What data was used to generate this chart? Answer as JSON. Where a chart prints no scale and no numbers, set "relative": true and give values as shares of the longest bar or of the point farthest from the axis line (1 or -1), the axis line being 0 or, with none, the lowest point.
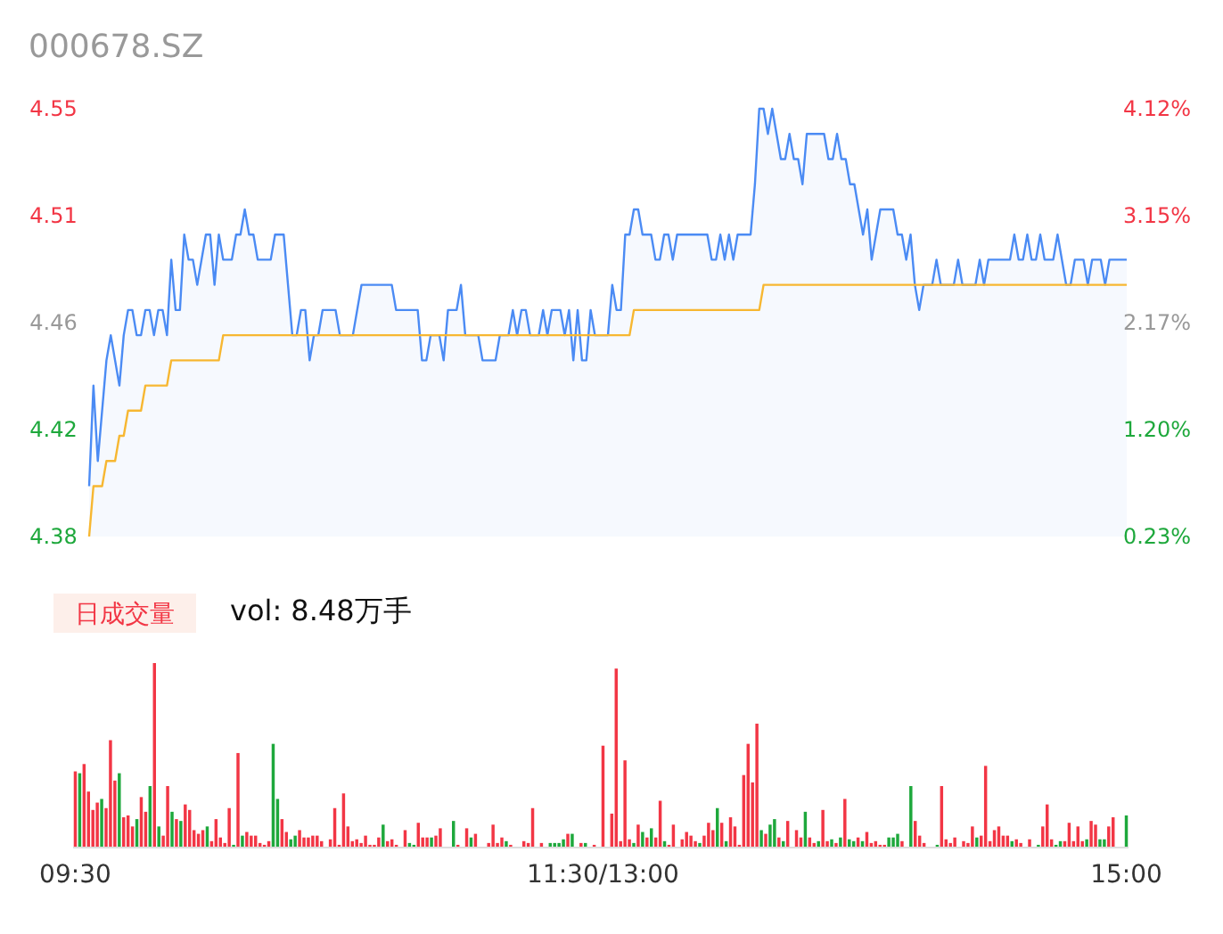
{
  "chart_data": [
    {
      "type": "area",
      "title": "000678.SZ",
      "ylim": [
        4.38,
        4.55
      ],
      "categories": [
        null,
        null,
        null,
        null,
        null,
        null,
        null,
        null,
        null,
        null,
        null,
        null,
        null,
        null,
        null,
        null,
        null,
        null,
        null,
        null,
        null,
        null,
        null,
        null,
        null,
        null,
        null,
        null,
        null,
        null,
        null,
        null,
        null,
        null,
        null,
        null,
        null,
        null,
        null,
        null,
        null,
        null,
        null,
        null,
        null,
        null,
        null,
        null,
        null,
        null,
        null,
        null,
        null,
        null,
        null,
        null,
        null,
        null,
        null,
        null,
        null,
        null,
        null,
        null,
        null,
        null,
        null,
        null,
        null,
        null,
        null,
        null,
        null,
        null,
        null,
        null,
        null,
        null,
        null,
        null,
        null,
        null,
        null,
        null,
        null,
        null,
        null,
        null,
        null,
        null,
        null,
        null,
        null,
        null,
        null,
        null,
        null,
        null,
        null,
        null,
        null,
        null,
        null,
        null,
        null,
        null,
        null,
        null,
        null,
        null,
        null,
        null,
        null,
        null,
        null,
        null,
        null,
        null,
        null,
        null,
        null,
        null,
        null,
        null,
        null,
        null,
        null,
        null,
        null,
        null,
        null,
        null,
        null,
        null,
        null,
        null,
        null,
        null,
        null,
        null,
        null,
        null,
        null,
        null,
        null,
        null,
        null,
        null,
        null,
        null,
        null,
        null,
        null,
        null,
        null,
        null,
        null,
        null,
        null,
        null,
        null,
        null,
        null,
        null,
        null,
        null,
        null,
        null,
        null,
        null,
        null,
        null,
        null,
        null,
        null,
        null,
        null,
        null,
        null,
        null,
        null,
        null,
        null,
        null,
        null,
        null,
        null,
        null,
        null,
        null,
        null,
        null,
        null,
        null,
        null,
        null,
        null,
        null,
        null,
        null,
        null,
        null,
        null,
        null,
        null,
        null,
        null,
        null,
        null,
        null,
        null,
        null,
        null,
        null,
        null,
        null,
        null,
        null,
        null,
        null,
        null,
        null,
        null,
        null,
        null,
        null,
        null,
        null,
        null,
        null,
        null,
        null,
        null,
        null,
        null,
        null,
        null,
        null,
        null,
        null,
        null
      ],
      "yticks": [
        4.38,
        {
          "value": 4.4225,
          "label": "4.42"
        },
        {
          "value": 4.465,
          "label": "4.46"
        },
        {
          "value": 4.5075,
          "label": "4.51"
        },
        4.55
      ],
      "y2lim": [
        0.23,
        4.12
      ],
      "y2ticks": [
        {
          "value": 0.23,
          "label": "0.23%"
        },
        {
          "value": 1.2025,
          "label": "1.20%"
        },
        {
          "value": 2.175,
          "label": "2.17%"
        },
        {
          "value": 3.1475,
          "label": "3.15%"
        },
        {
          "value": 4.12,
          "label": "4.12%"
        }
      ],
      "tick_labels": "y",
      "series": [
        {
          "type": "area",
          "color": "#4b8bf4",
          "values": [
            4.4,
            4.44,
            4.41,
            4.43,
            4.45,
            4.46,
            4.45,
            4.44,
            4.46,
            4.47,
            4.47,
            4.46,
            4.46,
            4.47,
            4.47,
            4.46,
            4.47,
            4.47,
            4.46,
            4.49,
            4.47,
            4.47,
            4.5,
            4.49,
            4.49,
            4.48,
            4.49,
            4.5,
            4.5,
            4.48,
            4.5,
            4.49,
            4.49,
            4.49,
            4.5,
            4.5,
            4.51,
            4.5,
            4.5,
            4.49,
            4.49,
            4.49,
            4.49,
            4.5,
            4.5,
            4.5,
            4.48,
            4.46,
            4.46,
            4.47,
            4.47,
            4.45,
            4.46,
            4.46,
            4.47,
            4.47,
            4.47,
            4.47,
            4.46,
            4.46,
            4.46,
            4.46,
            4.47,
            4.48,
            4.48,
            4.48,
            4.48,
            4.48,
            4.48,
            4.48,
            4.48,
            4.47,
            4.47,
            4.47,
            4.47,
            4.47,
            4.47,
            4.45,
            4.45,
            4.46,
            4.46,
            4.46,
            4.45,
            4.47,
            4.47,
            4.47,
            4.48,
            4.46,
            4.46,
            4.46,
            4.46,
            4.45,
            4.45,
            4.45,
            4.45,
            4.46,
            4.46,
            4.46,
            4.47,
            4.46,
            4.47,
            4.47,
            4.46,
            4.46,
            4.46,
            4.47,
            4.46,
            4.47,
            4.47,
            4.47,
            4.46,
            4.47,
            4.45,
            4.47,
            4.45,
            4.45,
            4.47,
            4.46,
            4.46,
            4.46,
            4.46,
            4.48,
            4.47,
            4.47,
            4.5,
            4.5,
            4.51,
            4.51,
            4.5,
            4.5,
            4.5,
            4.49,
            4.49,
            4.5,
            4.5,
            4.49,
            4.5,
            4.5,
            4.5,
            4.5,
            4.5,
            4.5,
            4.5,
            4.5,
            4.49,
            4.49,
            4.5,
            4.49,
            4.5,
            4.49,
            4.5,
            4.5,
            4.5,
            4.5,
            4.52,
            4.55,
            4.55,
            4.54,
            4.55,
            4.54,
            4.53,
            4.53,
            4.54,
            4.53,
            4.53,
            4.52,
            4.54,
            4.54,
            4.54,
            4.54,
            4.54,
            4.53,
            4.53,
            4.54,
            4.53,
            4.53,
            4.52,
            4.52,
            4.51,
            4.5,
            4.51,
            4.49,
            4.5,
            4.51,
            4.51,
            4.51,
            4.51,
            4.5,
            4.5,
            4.49,
            4.5,
            4.48,
            4.47,
            4.48,
            4.48,
            4.48,
            4.49,
            4.48,
            4.48,
            4.48,
            4.48,
            4.49,
            4.48,
            4.48,
            4.48,
            4.48,
            4.49,
            4.48,
            4.49,
            4.49,
            4.49,
            4.49,
            4.49,
            4.49,
            4.5,
            4.49,
            4.49,
            4.5,
            4.49,
            4.49,
            4.5,
            4.49,
            4.49,
            4.49,
            4.5,
            4.49,
            4.48,
            4.48,
            4.49,
            4.49,
            4.49,
            4.48,
            4.49,
            4.49,
            4.49,
            4.48,
            4.49,
            4.49,
            4.49,
            4.49,
            4.49
          ]
        },
        {
          "type": "line",
          "color": "#f7b731",
          "values": [
            4.38,
            4.4,
            4.4,
            4.4,
            4.41,
            4.41,
            4.41,
            4.42,
            4.42,
            4.43,
            4.43,
            4.43,
            4.43,
            4.44,
            4.44,
            4.44,
            4.44,
            4.44,
            4.44,
            4.45,
            4.45,
            4.45,
            4.45,
            4.45,
            4.45,
            4.45,
            4.45,
            4.45,
            4.45,
            4.45,
            4.45,
            4.46,
            4.46,
            4.46,
            4.46,
            4.46,
            4.46,
            4.46,
            4.46,
            4.46,
            4.46,
            4.46,
            4.46,
            4.46,
            4.46,
            4.46,
            4.46,
            4.46,
            4.46,
            4.46,
            4.46,
            4.46,
            4.46,
            4.46,
            4.46,
            4.46,
            4.46,
            4.46,
            4.46,
            4.46,
            4.46,
            4.46,
            4.46,
            4.46,
            4.46,
            4.46,
            4.46,
            4.46,
            4.46,
            4.46,
            4.46,
            4.46,
            4.46,
            4.46,
            4.46,
            4.46,
            4.46,
            4.46,
            4.46,
            4.46,
            4.46,
            4.46,
            4.46,
            4.46,
            4.46,
            4.46,
            4.46,
            4.46,
            4.46,
            4.46,
            4.46,
            4.46,
            4.46,
            4.46,
            4.46,
            4.46,
            4.46,
            4.46,
            4.46,
            4.46,
            4.46,
            4.46,
            4.46,
            4.46,
            4.46,
            4.46,
            4.46,
            4.46,
            4.46,
            4.46,
            4.46,
            4.46,
            4.46,
            4.46,
            4.46,
            4.46,
            4.46,
            4.46,
            4.46,
            4.46,
            4.46,
            4.46,
            4.46,
            4.46,
            4.46,
            4.46,
            4.47,
            4.47,
            4.47,
            4.47,
            4.47,
            4.47,
            4.47,
            4.47,
            4.47,
            4.47,
            4.47,
            4.47,
            4.47,
            4.47,
            4.47,
            4.47,
            4.47,
            4.47,
            4.47,
            4.47,
            4.47,
            4.47,
            4.47,
            4.47,
            4.47,
            4.47,
            4.47,
            4.47,
            4.47,
            4.47,
            4.48,
            4.48,
            4.48,
            4.48,
            4.48,
            4.48,
            4.48,
            4.48,
            4.48,
            4.48,
            4.48,
            4.48,
            4.48,
            4.48,
            4.48,
            4.48,
            4.48,
            4.48,
            4.48,
            4.48,
            4.48,
            4.48,
            4.48,
            4.48,
            4.48,
            4.48,
            4.48,
            4.48,
            4.48,
            4.48,
            4.48,
            4.48,
            4.48,
            4.48,
            4.48,
            4.48,
            4.48,
            4.48,
            4.48,
            4.48,
            4.48,
            4.48,
            4.48,
            4.48,
            4.48,
            4.48,
            4.48,
            4.48,
            4.48,
            4.48,
            4.48,
            4.48,
            4.48,
            4.48,
            4.48,
            4.48,
            4.48,
            4.48,
            4.48,
            4.48,
            4.48,
            4.48,
            4.48,
            4.48,
            4.48,
            4.48,
            4.48,
            4.48,
            4.48,
            4.48,
            4.48,
            4.48,
            4.48,
            4.48,
            4.48,
            4.48,
            4.48,
            4.48,
            4.48,
            4.48,
            4.48,
            4.48,
            4.48,
            4.48,
            4.48
          ]
        }
      ]
    },
    {
      "type": "bar",
      "title": "日成交量",
      "annotations": [
        "vol: 8.48万手"
      ],
      "relative": true,
      "categories": [
        "09:30",
        null,
        null,
        null,
        null,
        null,
        null,
        null,
        null,
        null,
        null,
        null,
        null,
        null,
        null,
        null,
        null,
        null,
        null,
        null,
        null,
        null,
        null,
        null,
        null,
        null,
        null,
        null,
        null,
        null,
        null,
        null,
        null,
        null,
        null,
        null,
        null,
        null,
        null,
        null,
        null,
        null,
        null,
        null,
        null,
        null,
        null,
        null,
        null,
        null,
        null,
        null,
        null,
        null,
        null,
        null,
        null,
        null,
        null,
        null,
        null,
        null,
        null,
        null,
        null,
        null,
        null,
        null,
        null,
        null,
        null,
        null,
        null,
        null,
        null,
        null,
        null,
        null,
        null,
        null,
        null,
        null,
        null,
        null,
        null,
        null,
        null,
        null,
        null,
        null,
        null,
        null,
        null,
        null,
        null,
        null,
        null,
        null,
        null,
        null,
        null,
        null,
        null,
        null,
        null,
        null,
        null,
        null,
        null,
        null,
        null,
        null,
        null,
        null,
        null,
        null,
        null,
        null,
        null,
        null,
        "11:30/13:00",
        null,
        null,
        null,
        null,
        null,
        null,
        null,
        null,
        null,
        null,
        null,
        null,
        null,
        null,
        null,
        null,
        null,
        null,
        null,
        null,
        null,
        null,
        null,
        null,
        null,
        null,
        null,
        null,
        null,
        null,
        null,
        null,
        null,
        null,
        null,
        null,
        null,
        null,
        null,
        null,
        null,
        null,
        null,
        null,
        null,
        null,
        null,
        null,
        null,
        null,
        null,
        null,
        null,
        null,
        null,
        null,
        null,
        null,
        null,
        null,
        null,
        null,
        null,
        null,
        null,
        null,
        null,
        null,
        null,
        null,
        null,
        null,
        null,
        null,
        null,
        null,
        null,
        null,
        null,
        null,
        null,
        null,
        null,
        null,
        null,
        null,
        null,
        null,
        null,
        null,
        null,
        null,
        null,
        null,
        null,
        null,
        null,
        null,
        null,
        null,
        null,
        null,
        null,
        null,
        null,
        null,
        null,
        null,
        null,
        null,
        null,
        null,
        null,
        null,
        null,
        null,
        null,
        null,
        "15:00"
      ],
      "series": [
        {
          "color": "#f23645",
          "values": [
            0.41,
            null,
            0.45,
            0.3,
            0.2,
            0.24,
            null,
            0.21,
            0.58,
            0.36,
            null,
            0.16,
            0.17,
            0.11,
            null,
            0.27,
            0.19,
            null,
            1,
            null,
            0.06,
            0.33,
            null,
            0.15,
            null,
            0.23,
            0.2,
            0.09,
            0.07,
            0.09,
            null,
            0.03,
            0.15,
            0.05,
            0.02,
            0.21,
            null,
            0.51,
            null,
            0.08,
            0.06,
            0.06,
            0.02,
            0.01,
            0.03,
            null,
            null,
            0.15,
            0.08,
            null,
            null,
            0.09,
            0.05,
            0.05,
            0.06,
            0.06,
            0.03,
            null,
            0.04,
            0.21,
            0.01,
            0.29,
            0.11,
            0.03,
            0.04,
            0.02,
            0.06,
            0.01,
            0.01,
            0.05,
            null,
            0.03,
            0.04,
            0.01,
            null,
            0.09,
            null,
            null,
            0.13,
            0.05,
            0.05,
            null,
            0.06,
            0.1,
            null,
            null,
            null,
            0.01,
            null,
            0.1,
            null,
            0.07,
            null,
            null,
            0.02,
            0.12,
            0.02,
            0.05,
            null,
            0.01,
            null,
            null,
            0.03,
            0.02,
            0.21,
            null,
            0.02,
            null,
            null,
            null,
            null,
            null,
            0.07,
            null,
            null,
            0.02,
            null,
            null,
            0.01,
            null,
            0.55,
            null,
            0.18,
            0.97,
            0.03,
            0.47,
            0.04,
            null,
            0.12,
            null,
            0.05,
            null,
            0.05,
            0.25,
            null,
            0.01,
            0.12,
            null,
            0.04,
            0.08,
            0.06,
            0.03,
            null,
            0.06,
            0.13,
            0.09,
            null,
            0.13,
            null,
            0.16,
            0.11,
            0.01,
            0.39,
            0.56,
            0.35,
            0.67,
            null,
            0.07,
            null,
            null,
            0.05,
            null,
            0.14,
            null,
            0.09,
            0.05,
            null,
            0.05,
            0.02,
            null,
            0.2,
            0.03,
            null,
            0.02,
            null,
            0.26,
            null,
            null,
            0.05,
            null,
            0.08,
            0.02,
            0.03,
            0.01,
            0.01,
            null,
            null,
            null,
            0.03,
            null,
            null,
            0.14,
            0.06,
            0.02,
            null,
            null,
            null,
            0.33,
            0.04,
            0.02,
            0.05,
            null,
            0.03,
            0.02,
            0.11,
            null,
            0.06,
            0.44,
            0.03,
            0.09,
            0.11,
            0.06,
            0.06,
            null,
            0.04,
            0.02,
            null,
            0.04,
            null,
            null,
            0.11,
            0.23,
            0.04,
            null,
            null,
            0.03,
            0.13,
            0.03,
            0.11,
            0.03,
            null,
            0.14,
            0.12,
            null,
            null,
            0.11,
            0.16,
            null,
            null,
            null
          ]
        },
        {
          "color": "#1ea83c",
          "values": [
            null,
            0.4,
            null,
            null,
            null,
            null,
            0.26,
            null,
            null,
            null,
            0.4,
            null,
            null,
            null,
            0.15,
            null,
            null,
            0.33,
            null,
            0.11,
            null,
            null,
            0.19,
            null,
            0.14,
            null,
            null,
            null,
            null,
            null,
            0.11,
            null,
            null,
            null,
            null,
            null,
            0.01,
            null,
            0.06,
            null,
            null,
            null,
            null,
            null,
            null,
            0.56,
            0.26,
            null,
            null,
            0.04,
            0.06,
            null,
            null,
            null,
            null,
            null,
            null,
            null,
            null,
            null,
            null,
            null,
            null,
            null,
            null,
            null,
            null,
            null,
            null,
            null,
            0.12,
            null,
            null,
            null,
            null,
            null,
            0.02,
            0.01,
            null,
            null,
            null,
            0.05,
            null,
            null,
            null,
            null,
            0.14,
            null,
            null,
            null,
            0.05,
            null,
            null,
            null,
            null,
            null,
            null,
            null,
            0.03,
            null,
            null,
            null,
            null,
            null,
            null,
            null,
            null,
            null,
            0.02,
            0.02,
            0.02,
            0.04,
            null,
            0.07,
            null,
            null,
            0.02,
            null,
            null,
            null,
            null,
            null,
            null,
            null,
            null,
            null,
            null,
            0.02,
            null,
            0.08,
            null,
            0.1,
            null,
            null,
            0.03,
            null,
            null,
            null,
            null,
            null,
            null,
            null,
            0.02,
            null,
            null,
            null,
            0.21,
            null,
            0.03,
            null,
            null,
            null,
            null,
            null,
            null,
            null,
            0.09,
            null,
            0.12,
            0.15,
            null,
            0.03,
            null,
            null,
            null,
            null,
            0.19,
            null,
            null,
            0.03,
            null,
            null,
            0.04,
            null,
            0.05,
            null,
            0.04,
            0.03,
            null,
            0.03,
            null,
            null,
            null,
            null,
            null,
            0.05,
            0.05,
            0.07,
            null,
            null,
            0.33,
            null,
            null,
            null,
            null,
            null,
            0.01,
            null,
            null,
            null,
            null,
            null,
            null,
            null,
            null,
            0.05,
            null,
            null,
            null,
            null,
            null,
            null,
            null,
            0.03,
            null,
            null,
            null,
            null,
            null,
            0.01,
            null,
            null,
            null,
            0.01,
            0.03,
            null,
            null,
            null,
            null,
            null,
            0.04,
            null,
            null,
            0.04,
            0.04,
            null,
            null,
            null,
            null,
            0.17
          ]
        }
      ]
    }
  ]
}
